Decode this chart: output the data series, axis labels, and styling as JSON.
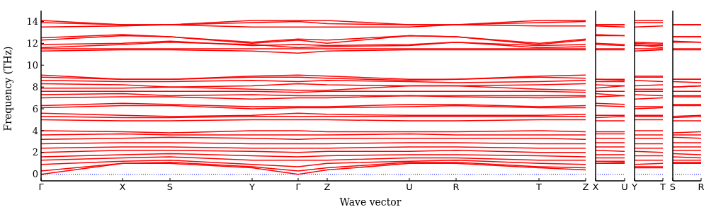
{
  "chart_data": [
    {
      "type": "line",
      "xlabel": "Wave vector",
      "ylabel": "Frequency (THz)",
      "color": "#ff0000",
      "categories": [
        "Γ",
        "X",
        "S",
        "Y",
        "Γ",
        "Z",
        "U",
        "R",
        "T",
        "Z"
      ],
      "ylim": [
        -0.6,
        15
      ],
      "yticks": [
        0,
        2,
        4,
        6,
        8,
        10,
        12,
        14
      ],
      "ref_lines": [
        {
          "axis": "y",
          "value": 0,
          "color": "#0000ff",
          "line_style": "dotted"
        }
      ],
      "series": [
        {
          "values": [
            14.1,
            13.7,
            13.7,
            14.1,
            14.1,
            14.1,
            13.7,
            13.7,
            14.1,
            14.1
          ]
        },
        {
          "values": [
            13.9,
            13.7,
            13.7,
            13.9,
            14.0,
            13.8,
            13.7,
            13.7,
            13.9,
            14.0
          ]
        },
        {
          "values": [
            13.5,
            13.6,
            13.7,
            13.5,
            13.5,
            13.5,
            13.5,
            13.7,
            13.6,
            13.6
          ]
        },
        {
          "values": [
            12.5,
            12.8,
            12.6,
            12.1,
            12.4,
            12.3,
            12.7,
            12.6,
            12.0,
            12.4
          ]
        },
        {
          "values": [
            12.3,
            12.7,
            12.6,
            12.0,
            12.3,
            12.0,
            12.7,
            12.6,
            11.9,
            12.3
          ]
        },
        {
          "values": [
            11.9,
            12.0,
            12.2,
            11.8,
            11.9,
            11.8,
            11.9,
            12.1,
            11.8,
            11.9
          ]
        },
        {
          "values": [
            11.6,
            11.9,
            12.1,
            11.9,
            11.6,
            11.7,
            11.8,
            12.1,
            11.6,
            11.7
          ]
        },
        {
          "values": [
            11.5,
            11.5,
            11.5,
            11.5,
            11.5,
            11.5,
            11.5,
            11.5,
            11.5,
            11.5
          ]
        },
        {
          "values": [
            11.3,
            11.4,
            11.4,
            11.3,
            11.1,
            11.3,
            11.4,
            11.4,
            11.4,
            11.4
          ]
        },
        {
          "values": [
            9.1,
            8.7,
            8.7,
            9.0,
            9.1,
            9.0,
            8.7,
            8.7,
            9.0,
            9.1
          ]
        },
        {
          "values": [
            8.9,
            8.7,
            8.7,
            8.9,
            8.9,
            8.8,
            8.6,
            8.7,
            8.9,
            8.8
          ]
        },
        {
          "values": [
            8.6,
            8.5,
            8.5,
            8.6,
            8.5,
            8.6,
            8.5,
            8.4,
            8.5,
            8.6
          ]
        },
        {
          "values": [
            8.3,
            8.2,
            8.0,
            8.1,
            8.3,
            8.2,
            8.1,
            8.1,
            8.2,
            8.3
          ]
        },
        {
          "values": [
            7.9,
            7.9,
            8.0,
            7.8,
            7.7,
            7.7,
            8.1,
            8.1,
            7.8,
            7.7
          ]
        },
        {
          "values": [
            7.6,
            7.6,
            7.6,
            7.6,
            7.5,
            7.6,
            7.6,
            7.6,
            7.6,
            7.5
          ]
        },
        {
          "values": [
            7.3,
            7.4,
            7.2,
            7.3,
            7.2,
            7.2,
            7.2,
            7.2,
            7.2,
            7.2
          ]
        },
        {
          "values": [
            7.0,
            7.1,
            7.1,
            6.9,
            7.0,
            7.0,
            7.2,
            7.1,
            7.0,
            7.1
          ]
        },
        {
          "values": [
            6.3,
            6.5,
            6.4,
            6.2,
            6.2,
            6.2,
            6.4,
            6.4,
            6.2,
            6.3
          ]
        },
        {
          "values": [
            6.1,
            6.3,
            6.3,
            6.0,
            6.1,
            6.1,
            6.2,
            6.3,
            6.1,
            6.1
          ]
        },
        {
          "values": [
            5.6,
            5.4,
            5.3,
            5.4,
            5.6,
            5.5,
            5.4,
            5.4,
            5.4,
            5.5
          ]
        },
        {
          "values": [
            5.3,
            5.2,
            5.2,
            5.3,
            5.3,
            5.3,
            5.3,
            5.3,
            5.3,
            5.3
          ]
        },
        {
          "values": [
            5.0,
            4.9,
            4.9,
            5.0,
            5.0,
            5.0,
            4.9,
            4.9,
            5.0,
            5.0
          ]
        },
        {
          "values": [
            4.0,
            3.9,
            3.8,
            4.0,
            4.0,
            3.9,
            3.9,
            3.9,
            4.0,
            3.9
          ]
        },
        {
          "values": [
            3.6,
            3.7,
            3.6,
            3.6,
            3.6,
            3.6,
            3.7,
            3.6,
            3.6,
            3.6
          ]
        },
        {
          "values": [
            3.2,
            3.3,
            3.4,
            3.3,
            3.2,
            3.3,
            3.3,
            3.3,
            3.3,
            3.2
          ]
        },
        {
          "values": [
            2.8,
            2.9,
            2.9,
            2.8,
            2.8,
            2.8,
            2.9,
            2.9,
            2.8,
            2.8
          ]
        },
        {
          "values": [
            2.4,
            2.5,
            2.5,
            2.4,
            2.4,
            2.4,
            2.5,
            2.5,
            2.4,
            2.4
          ]
        },
        {
          "values": [
            2.0,
            2.2,
            2.2,
            2.1,
            2.0,
            2.1,
            2.1,
            2.2,
            2.0,
            2.0
          ]
        },
        {
          "values": [
            1.6,
            1.8,
            1.9,
            1.7,
            1.6,
            1.7,
            1.8,
            1.8,
            1.7,
            1.6
          ]
        },
        {
          "values": [
            1.3,
            1.5,
            1.6,
            1.3,
            1.3,
            1.3,
            1.5,
            1.5,
            1.3,
            1.3
          ]
        },
        {
          "values": [
            0.9,
            1.2,
            1.3,
            0.9,
            0.7,
            1.0,
            1.2,
            1.3,
            1.0,
            0.9
          ]
        },
        {
          "values": [
            0.3,
            1.0,
            1.1,
            0.7,
            0.3,
            0.6,
            1.1,
            1.1,
            0.7,
            0.6
          ]
        },
        {
          "values": [
            0,
            1.0,
            1.0,
            0.6,
            0,
            0.4,
            1.0,
            1.0,
            0.6,
            0.4
          ]
        }
      ]
    },
    {
      "type": "line",
      "color": "#ff0000",
      "tick_labels": "x",
      "categories": [
        "X",
        "U"
      ],
      "ylim": [
        -0.6,
        15
      ],
      "ref_lines": [
        {
          "axis": "y",
          "value": 0,
          "color": "#0000ff",
          "line_style": "dotted"
        }
      ],
      "series": [
        {
          "values": [
            13.7,
            13.7
          ]
        },
        {
          "values": [
            13.7,
            13.7
          ]
        },
        {
          "values": [
            13.6,
            13.5
          ]
        },
        {
          "values": [
            12.8,
            12.7
          ]
        },
        {
          "values": [
            12.7,
            12.7
          ]
        },
        {
          "values": [
            12.0,
            11.9
          ]
        },
        {
          "values": [
            11.9,
            11.8
          ]
        },
        {
          "values": [
            11.5,
            11.5
          ]
        },
        {
          "values": [
            11.4,
            11.4
          ]
        },
        {
          "values": [
            8.7,
            8.7
          ]
        },
        {
          "values": [
            8.7,
            8.6
          ]
        },
        {
          "values": [
            8.5,
            8.5
          ]
        },
        {
          "values": [
            8.2,
            8.1
          ]
        },
        {
          "values": [
            7.9,
            8.1
          ]
        },
        {
          "values": [
            7.6,
            7.6
          ]
        },
        {
          "values": [
            7.4,
            7.2
          ]
        },
        {
          "values": [
            7.1,
            7.2
          ]
        },
        {
          "values": [
            6.5,
            6.4
          ]
        },
        {
          "values": [
            6.3,
            6.2
          ]
        },
        {
          "values": [
            5.4,
            5.4
          ]
        },
        {
          "values": [
            5.2,
            5.3
          ]
        },
        {
          "values": [
            4.9,
            4.9
          ]
        },
        {
          "values": [
            3.9,
            3.9
          ]
        },
        {
          "values": [
            3.7,
            3.7
          ]
        },
        {
          "values": [
            3.3,
            3.3
          ]
        },
        {
          "values": [
            2.9,
            2.9
          ]
        },
        {
          "values": [
            2.5,
            2.5
          ]
        },
        {
          "values": [
            2.2,
            2.1
          ]
        },
        {
          "values": [
            1.8,
            1.8
          ]
        },
        {
          "values": [
            1.5,
            1.5
          ]
        },
        {
          "values": [
            1.2,
            1.2
          ]
        },
        {
          "values": [
            1.0,
            1.1
          ]
        },
        {
          "values": [
            1.0,
            1.0
          ]
        }
      ]
    },
    {
      "type": "line",
      "color": "#ff0000",
      "tick_labels": "x",
      "categories": [
        "Y",
        "T"
      ],
      "ylim": [
        -0.6,
        15
      ],
      "ref_lines": [
        {
          "axis": "y",
          "value": 0,
          "color": "#0000ff",
          "line_style": "dotted"
        }
      ],
      "series": [
        {
          "values": [
            14.1,
            14.1
          ]
        },
        {
          "values": [
            13.9,
            13.9
          ]
        },
        {
          "values": [
            13.5,
            13.6
          ]
        },
        {
          "values": [
            12.1,
            12.0
          ]
        },
        {
          "values": [
            12.0,
            11.9
          ]
        },
        {
          "values": [
            11.8,
            11.8
          ]
        },
        {
          "values": [
            11.9,
            11.6
          ]
        },
        {
          "values": [
            11.5,
            11.5
          ]
        },
        {
          "values": [
            11.3,
            11.4
          ]
        },
        {
          "values": [
            9.0,
            9.0
          ]
        },
        {
          "values": [
            8.9,
            8.9
          ]
        },
        {
          "values": [
            8.6,
            8.5
          ]
        },
        {
          "values": [
            8.1,
            8.2
          ]
        },
        {
          "values": [
            7.8,
            7.8
          ]
        },
        {
          "values": [
            7.6,
            7.6
          ]
        },
        {
          "values": [
            7.3,
            7.2
          ]
        },
        {
          "values": [
            6.9,
            7.0
          ]
        },
        {
          "values": [
            6.2,
            6.2
          ]
        },
        {
          "values": [
            6.0,
            6.1
          ]
        },
        {
          "values": [
            5.4,
            5.4
          ]
        },
        {
          "values": [
            5.3,
            5.3
          ]
        },
        {
          "values": [
            5.0,
            5.0
          ]
        },
        {
          "values": [
            4.0,
            4.0
          ]
        },
        {
          "values": [
            3.6,
            3.6
          ]
        },
        {
          "values": [
            3.3,
            3.3
          ]
        },
        {
          "values": [
            2.8,
            2.8
          ]
        },
        {
          "values": [
            2.4,
            2.4
          ]
        },
        {
          "values": [
            2.1,
            2.0
          ]
        },
        {
          "values": [
            1.7,
            1.7
          ]
        },
        {
          "values": [
            1.3,
            1.3
          ]
        },
        {
          "values": [
            0.9,
            1.0
          ]
        },
        {
          "values": [
            0.7,
            0.7
          ]
        },
        {
          "values": [
            0.6,
            0.6
          ]
        }
      ]
    },
    {
      "type": "line",
      "color": "#ff0000",
      "tick_labels": "x",
      "categories": [
        "S",
        "R"
      ],
      "ylim": [
        -0.6,
        15
      ],
      "ref_lines": [
        {
          "axis": "y",
          "value": 0,
          "color": "#0000ff",
          "line_style": "dotted"
        }
      ],
      "series": [
        {
          "values": [
            13.7,
            13.7
          ]
        },
        {
          "values": [
            13.7,
            13.7
          ]
        },
        {
          "values": [
            13.7,
            13.7
          ]
        },
        {
          "values": [
            12.6,
            12.6
          ]
        },
        {
          "values": [
            12.6,
            12.6
          ]
        },
        {
          "values": [
            12.2,
            12.1
          ]
        },
        {
          "values": [
            12.1,
            12.1
          ]
        },
        {
          "values": [
            11.5,
            11.5
          ]
        },
        {
          "values": [
            11.4,
            11.4
          ]
        },
        {
          "values": [
            8.7,
            8.7
          ]
        },
        {
          "values": [
            8.7,
            8.7
          ]
        },
        {
          "values": [
            8.5,
            8.4
          ]
        },
        {
          "values": [
            8.0,
            8.1
          ]
        },
        {
          "values": [
            8.0,
            8.1
          ]
        },
        {
          "values": [
            7.6,
            7.6
          ]
        },
        {
          "values": [
            7.2,
            7.2
          ]
        },
        {
          "values": [
            7.1,
            7.1
          ]
        },
        {
          "values": [
            6.4,
            6.4
          ]
        },
        {
          "values": [
            6.3,
            6.3
          ]
        },
        {
          "values": [
            5.3,
            5.4
          ]
        },
        {
          "values": [
            5.2,
            5.3
          ]
        },
        {
          "values": [
            4.9,
            4.9
          ]
        },
        {
          "values": [
            3.8,
            3.9
          ]
        },
        {
          "values": [
            3.6,
            3.6
          ]
        },
        {
          "values": [
            3.4,
            3.3
          ]
        },
        {
          "values": [
            2.9,
            2.9
          ]
        },
        {
          "values": [
            2.5,
            2.5
          ]
        },
        {
          "values": [
            2.2,
            2.2
          ]
        },
        {
          "values": [
            1.9,
            1.8
          ]
        },
        {
          "values": [
            1.6,
            1.5
          ]
        },
        {
          "values": [
            1.3,
            1.3
          ]
        },
        {
          "values": [
            1.1,
            1.1
          ]
        },
        {
          "values": [
            1.0,
            1.0
          ]
        }
      ]
    }
  ]
}
